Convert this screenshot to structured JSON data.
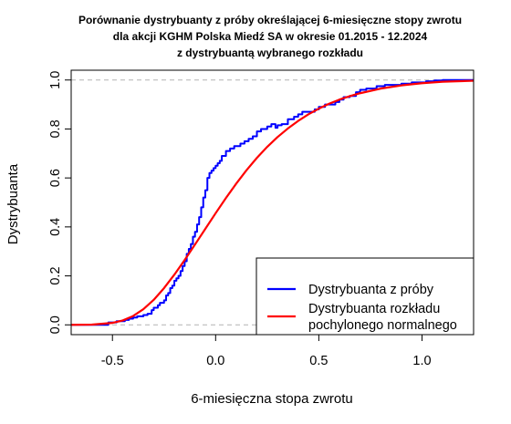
{
  "chart_data": {
    "type": "line",
    "title_lines": [
      "Porównanie dystrybuanty z próby określającej 6-miesięczne stopy zwrotu",
      "dla akcji KGHM Polska Miedź SA w okresie 01.2015 - 12.2024",
      "z dystrybuantą wybranego rozkładu"
    ],
    "xlabel": "6-miesięczna stopa zwrotu",
    "ylabel": "Dystrybuanta",
    "xlim": [
      -0.7,
      1.25
    ],
    "ylim": [
      -0.04,
      1.04
    ],
    "x_ticks": [
      -0.5,
      0.0,
      0.5,
      1.0
    ],
    "x_tick_labels": [
      "-0.5",
      "0.0",
      "0.5",
      "1.0"
    ],
    "y_ticks": [
      0.0,
      0.2,
      0.4,
      0.6,
      0.8,
      1.0
    ],
    "y_tick_labels": [
      "0.0",
      "0.2",
      "0.4",
      "0.6",
      "0.8",
      "1.0"
    ],
    "reference_lines": [
      0,
      1
    ],
    "legend": {
      "position": "bottom-right",
      "entries": [
        {
          "label_lines": [
            "Dystrybuanta z próby"
          ],
          "color": "#0000ff"
        },
        {
          "label_lines": [
            "Dystrybuanta rozkładu",
            "pochylonego normalnego"
          ],
          "color": "#ff0000"
        }
      ]
    },
    "series": [
      {
        "name": "Dystrybuanta z próby",
        "style": "step",
        "color": "#0000ff",
        "x": [
          -0.7,
          -0.52,
          -0.48,
          -0.44,
          -0.42,
          -0.4,
          -0.38,
          -0.35,
          -0.33,
          -0.31,
          -0.3,
          -0.28,
          -0.27,
          -0.25,
          -0.24,
          -0.23,
          -0.22,
          -0.21,
          -0.2,
          -0.19,
          -0.18,
          -0.17,
          -0.16,
          -0.15,
          -0.14,
          -0.13,
          -0.12,
          -0.11,
          -0.1,
          -0.09,
          -0.08,
          -0.07,
          -0.06,
          -0.05,
          -0.04,
          -0.03,
          -0.02,
          -0.01,
          0.0,
          0.01,
          0.02,
          0.03,
          0.05,
          0.07,
          0.09,
          0.12,
          0.14,
          0.16,
          0.18,
          0.2,
          0.22,
          0.25,
          0.27,
          0.29,
          0.3,
          0.32,
          0.35,
          0.38,
          0.4,
          0.42,
          0.45,
          0.48,
          0.5,
          0.53,
          0.56,
          0.58,
          0.6,
          0.62,
          0.65,
          0.68,
          0.7,
          0.73,
          0.78,
          0.82,
          0.9,
          0.95,
          1.02,
          1.06,
          1.1,
          1.25
        ],
        "y": [
          0.0,
          0.01,
          0.015,
          0.02,
          0.025,
          0.03,
          0.035,
          0.04,
          0.045,
          0.06,
          0.07,
          0.08,
          0.09,
          0.1,
          0.12,
          0.13,
          0.15,
          0.16,
          0.18,
          0.19,
          0.2,
          0.22,
          0.24,
          0.26,
          0.29,
          0.31,
          0.33,
          0.36,
          0.38,
          0.41,
          0.44,
          0.48,
          0.52,
          0.55,
          0.6,
          0.62,
          0.63,
          0.64,
          0.65,
          0.66,
          0.67,
          0.69,
          0.71,
          0.72,
          0.73,
          0.74,
          0.75,
          0.76,
          0.77,
          0.79,
          0.8,
          0.81,
          0.82,
          0.805,
          0.815,
          0.82,
          0.84,
          0.85,
          0.86,
          0.87,
          0.87,
          0.88,
          0.89,
          0.9,
          0.9,
          0.91,
          0.92,
          0.93,
          0.935,
          0.95,
          0.96,
          0.965,
          0.975,
          0.98,
          0.985,
          0.99,
          0.995,
          0.998,
          1.0,
          1.0
        ]
      },
      {
        "name": "Dystrybuanta rozkładu pochylonego normalnego",
        "style": "smooth",
        "color": "#ff0000",
        "x": [
          -0.7,
          -0.6,
          -0.5,
          -0.45,
          -0.4,
          -0.35,
          -0.3,
          -0.25,
          -0.2,
          -0.15,
          -0.1,
          -0.05,
          0.0,
          0.05,
          0.1,
          0.15,
          0.2,
          0.25,
          0.3,
          0.35,
          0.4,
          0.45,
          0.5,
          0.55,
          0.6,
          0.65,
          0.7,
          0.8,
          0.9,
          1.0,
          1.1,
          1.25
        ],
        "y": [
          0.0,
          0.001,
          0.008,
          0.018,
          0.036,
          0.064,
          0.102,
          0.15,
          0.205,
          0.265,
          0.328,
          0.392,
          0.456,
          0.518,
          0.577,
          0.632,
          0.682,
          0.727,
          0.767,
          0.802,
          0.833,
          0.86,
          0.883,
          0.903,
          0.92,
          0.934,
          0.946,
          0.965,
          0.978,
          0.987,
          0.993,
          0.997
        ]
      }
    ]
  }
}
